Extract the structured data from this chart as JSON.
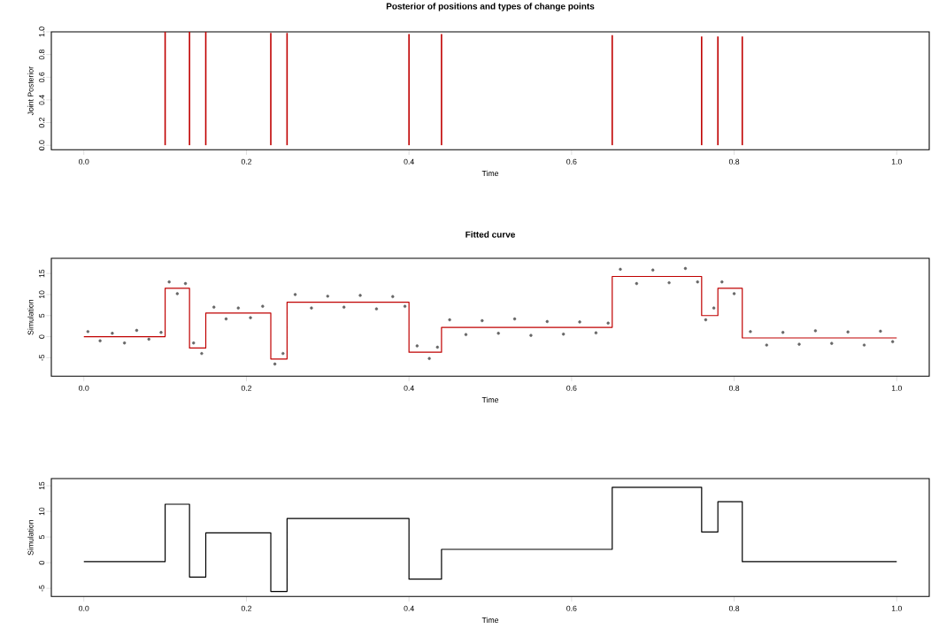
{
  "chart_data": [
    {
      "type": "bar",
      "title": "Posterior of positions and types of change points",
      "xlabel": "Time",
      "ylabel": "Joint Posterior",
      "color": "#c00000",
      "x": [
        0.1,
        0.13,
        0.15,
        0.23,
        0.25,
        0.4,
        0.44,
        0.65,
        0.76,
        0.78,
        0.81
      ],
      "values": [
        1.0,
        1.0,
        1.0,
        0.99,
        0.99,
        0.98,
        0.98,
        0.97,
        0.96,
        0.96,
        0.96
      ],
      "xlim": [
        -0.04,
        1.04
      ],
      "ylim": [
        -0.04,
        1.0
      ],
      "xticks": [
        {
          "value": 0,
          "label": "0.0"
        },
        {
          "value": 0.2,
          "label": "0.2"
        },
        {
          "value": 0.4,
          "label": "0.4"
        },
        {
          "value": 0.6,
          "label": "0.6"
        },
        {
          "value": 0.8,
          "label": "0.8"
        },
        {
          "value": 1,
          "label": "1.0"
        }
      ],
      "yticks": [
        {
          "value": 0,
          "label": "0.0"
        },
        {
          "value": 0.2,
          "label": "0.2"
        },
        {
          "value": 0.4,
          "label": "0.4"
        },
        {
          "value": 0.6,
          "label": "0.6"
        },
        {
          "value": 0.8,
          "label": "0.8"
        },
        {
          "value": 1,
          "label": "1.0"
        }
      ]
    },
    {
      "type": "scatter",
      "title": "Fitted curve",
      "xlabel": "Time",
      "ylabel": "Simulation",
      "series": [
        {
          "type": "scatter",
          "color": "#666666",
          "x": [
            0.005,
            0.02,
            0.035,
            0.05,
            0.065,
            0.08,
            0.095,
            0.105,
            0.115,
            0.125,
            0.135,
            0.145,
            0.16,
            0.175,
            0.19,
            0.205,
            0.22,
            0.235,
            0.245,
            0.26,
            0.28,
            0.3,
            0.32,
            0.34,
            0.36,
            0.38,
            0.395,
            0.41,
            0.425,
            0.435,
            0.45,
            0.47,
            0.49,
            0.51,
            0.53,
            0.55,
            0.57,
            0.59,
            0.61,
            0.63,
            0.645,
            0.66,
            0.68,
            0.7,
            0.72,
            0.74,
            0.755,
            0.765,
            0.775,
            0.785,
            0.8,
            0.82,
            0.84,
            0.86,
            0.88,
            0.9,
            0.92,
            0.94,
            0.96,
            0.98,
            0.995
          ],
          "values": [
            1.2,
            -1.0,
            0.8,
            -1.5,
            1.5,
            -0.6,
            1.0,
            13.0,
            10.2,
            12.6,
            -1.5,
            -4.0,
            7.0,
            4.2,
            6.8,
            4.5,
            7.2,
            -6.5,
            -4.0,
            10.0,
            6.8,
            9.6,
            7.0,
            9.8,
            6.6,
            9.5,
            7.2,
            -2.2,
            -5.2,
            -2.5,
            4.0,
            0.5,
            3.8,
            0.8,
            4.2,
            0.3,
            3.6,
            0.6,
            3.5,
            0.9,
            3.2,
            16.0,
            12.6,
            15.8,
            12.8,
            16.2,
            13.0,
            4.0,
            6.8,
            13.0,
            10.2,
            1.2,
            -2.0,
            1.0,
            -1.8,
            1.4,
            -1.6,
            1.1,
            -2.0,
            1.3,
            -1.2
          ]
        },
        {
          "type": "step",
          "color": "#c00000",
          "x": [
            0,
            0.1,
            0.13,
            0.15,
            0.23,
            0.25,
            0.4,
            0.44,
            0.65,
            0.76,
            0.78,
            0.81,
            1.0
          ],
          "values": [
            0,
            11.5,
            -2.7,
            5.6,
            -5.3,
            8.2,
            -3.7,
            2.2,
            14.3,
            5.0,
            11.5,
            -0.3,
            -0.3
          ]
        }
      ],
      "xlim": [
        -0.04,
        1.04
      ],
      "ylim": [
        -9.4,
        18.6
      ],
      "xticks": [
        {
          "value": 0,
          "label": "0.0"
        },
        {
          "value": 0.2,
          "label": "0.2"
        },
        {
          "value": 0.4,
          "label": "0.4"
        },
        {
          "value": 0.6,
          "label": "0.6"
        },
        {
          "value": 0.8,
          "label": "0.8"
        },
        {
          "value": 1,
          "label": "1.0"
        }
      ],
      "yticks": [
        -5,
        0,
        5,
        10,
        15
      ]
    },
    {
      "type": "step",
      "xlabel": "Time",
      "ylabel": "Simulation",
      "color": "#000000",
      "x": [
        0,
        0.1,
        0.13,
        0.15,
        0.23,
        0.25,
        0.4,
        0.44,
        0.65,
        0.76,
        0.78,
        0.81,
        1.0
      ],
      "values": [
        0.2,
        11.4,
        -2.8,
        5.8,
        -5.6,
        8.6,
        -3.2,
        2.6,
        14.7,
        6.0,
        11.9,
        0.2,
        0.2
      ],
      "xlim": [
        -0.04,
        1.04
      ],
      "ylim": [
        -6.6,
        16.4
      ],
      "xticks": [
        {
          "value": 0,
          "label": "0.0"
        },
        {
          "value": 0.2,
          "label": "0.2"
        },
        {
          "value": 0.4,
          "label": "0.4"
        },
        {
          "value": 0.6,
          "label": "0.6"
        },
        {
          "value": 0.8,
          "label": "0.8"
        },
        {
          "value": 1,
          "label": "1.0"
        }
      ],
      "yticks": [
        -5,
        0,
        5,
        10,
        15
      ]
    }
  ]
}
